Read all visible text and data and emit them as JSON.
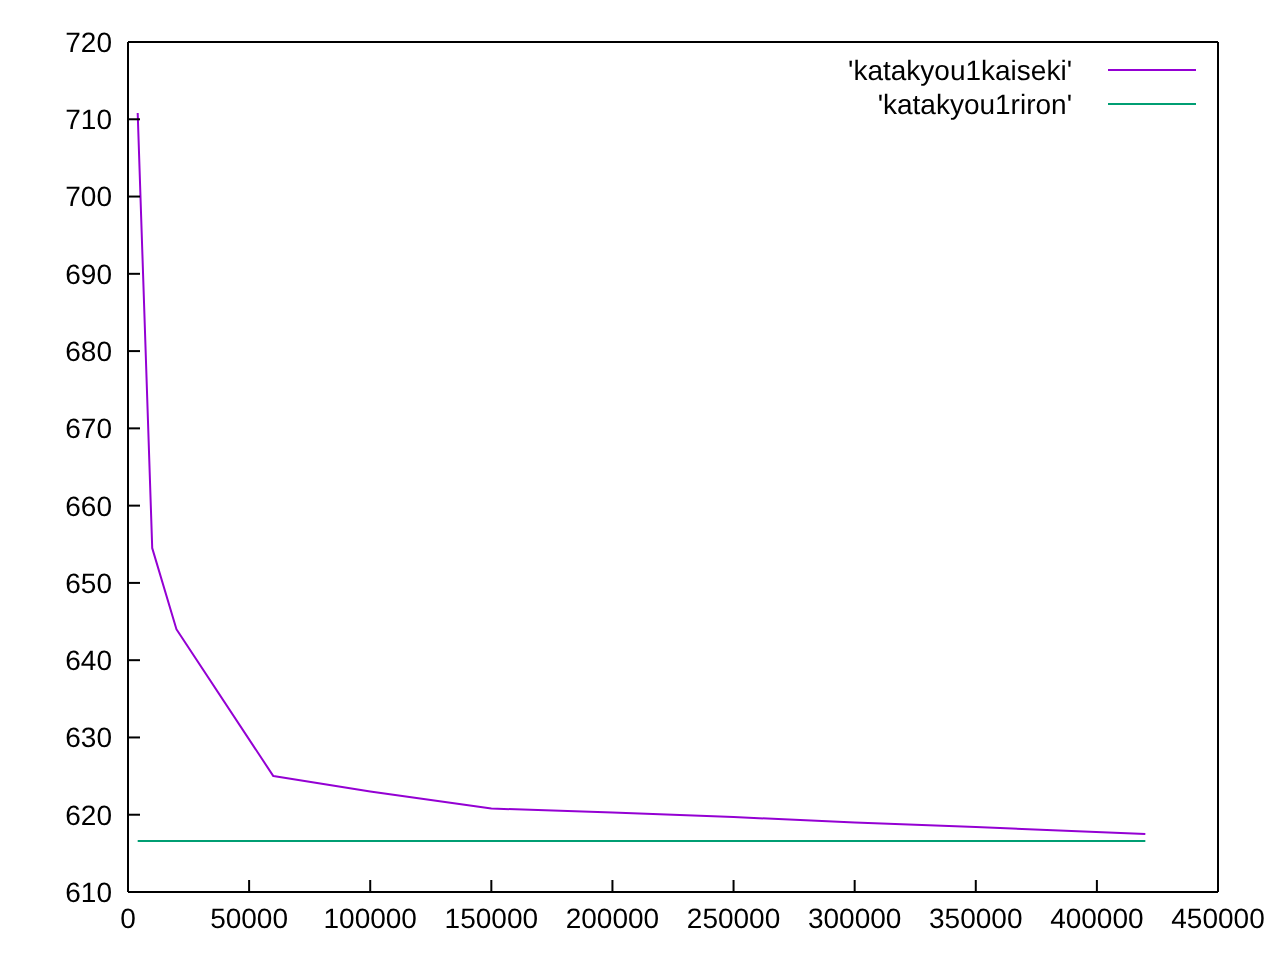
{
  "chart_data": {
    "type": "line",
    "xlim": [
      0,
      450000
    ],
    "ylim": [
      610,
      720
    ],
    "xticks": [
      0,
      50000,
      100000,
      150000,
      200000,
      250000,
      300000,
      350000,
      400000,
      450000
    ],
    "yticks": [
      610,
      620,
      630,
      640,
      650,
      660,
      670,
      680,
      690,
      700,
      710,
      720
    ],
    "legend": "top right",
    "marker": "none",
    "line_style": "solid",
    "series": [
      {
        "name": "'katakyou1kaiseki'",
        "color": "#9400d3",
        "x": [
          4000,
          10000,
          20000,
          60000,
          100000,
          150000,
          200000,
          250000,
          300000,
          350000,
          420000
        ],
        "values": [
          710.8,
          654.5,
          644,
          625,
          623,
          620.8,
          620.3,
          619.7,
          619,
          618.4,
          617.5
        ]
      },
      {
        "name": "'katakyou1riron'",
        "color": "#009e73",
        "x": [
          4000,
          420000
        ],
        "values": [
          616.6,
          616.6
        ]
      }
    ]
  }
}
